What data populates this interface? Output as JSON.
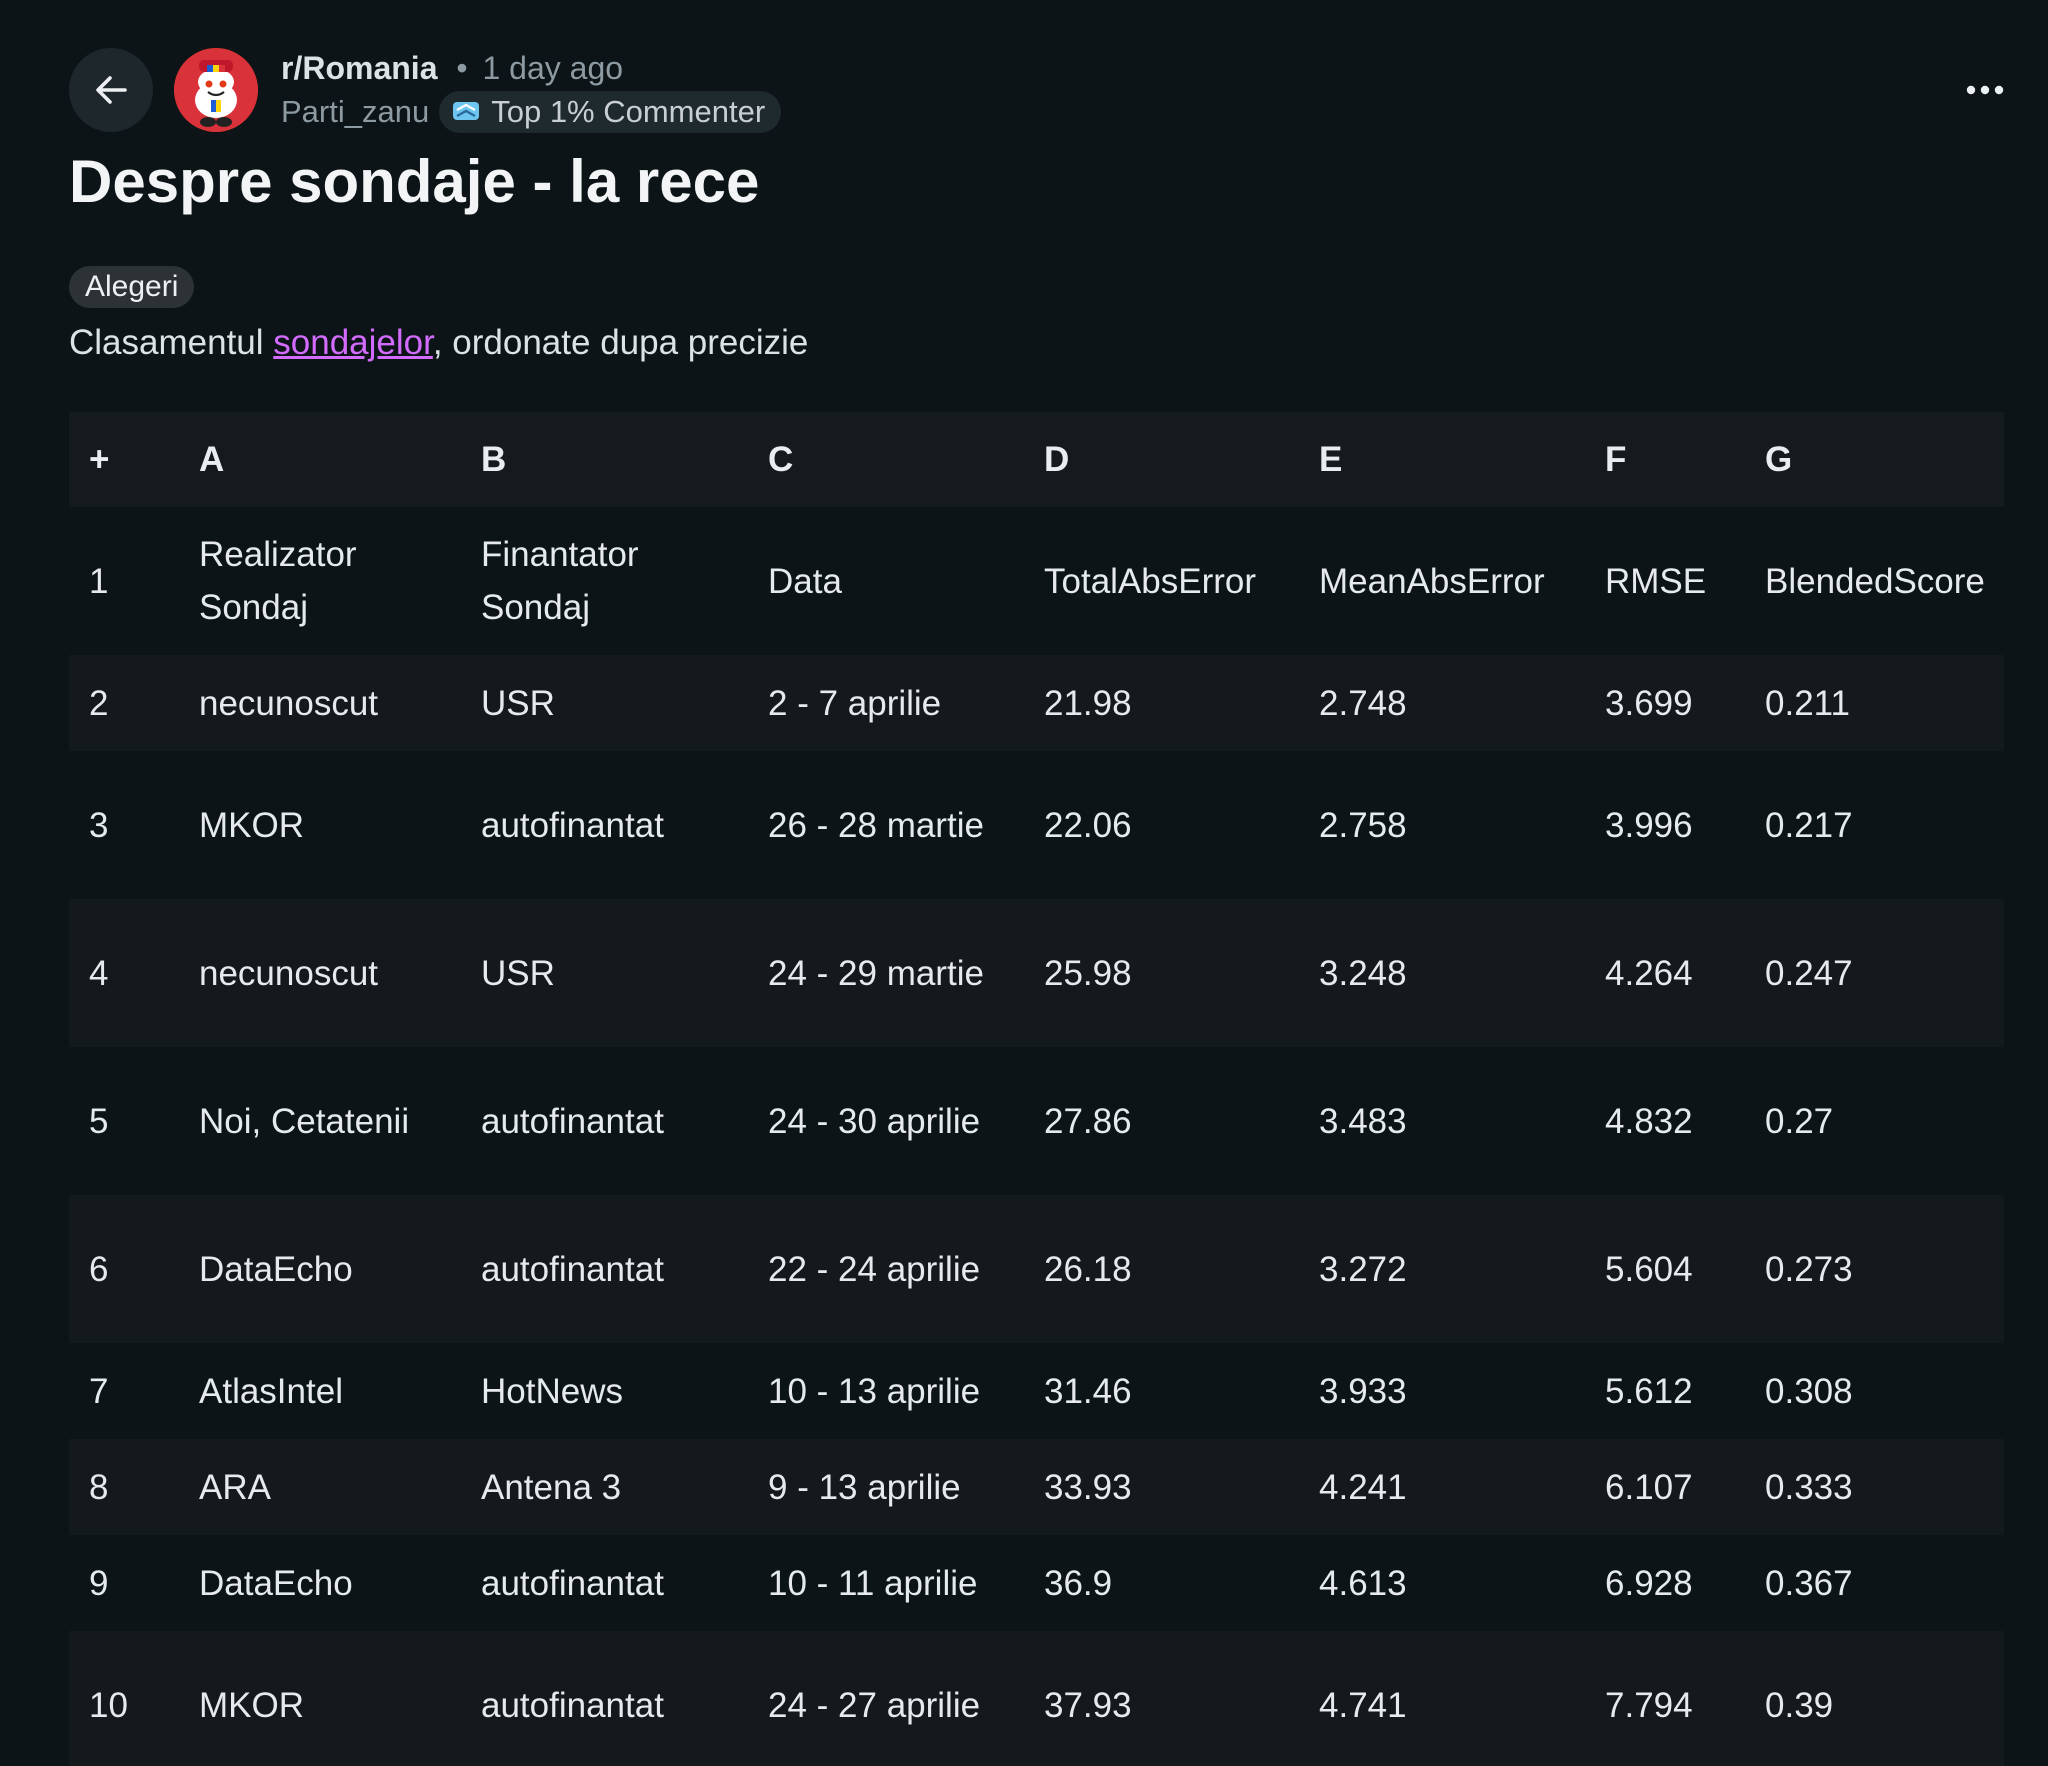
{
  "header": {
    "subreddit": "r/Romania",
    "separator": "•",
    "time_ago": "1 day ago",
    "username": "Parti_zanu",
    "user_badge": "Top 1% Commenter",
    "back_icon": "arrow-left-icon",
    "more_icon": "ellipsis-icon"
  },
  "post": {
    "title": "Despre sondaje - la rece",
    "flair": "Alegeri",
    "body_prefix": "Clasamentul ",
    "body_link": "sondajelor",
    "body_suffix": ", ordonate dupa precizie"
  },
  "colors": {
    "background": "#0c1417",
    "link": "#d36bff",
    "row_alt": "#141a1c",
    "header_row": "#151b1d"
  },
  "table": {
    "columns": [
      "+",
      "A",
      "B",
      "C",
      "D",
      "E",
      "F",
      "G"
    ],
    "rows": [
      [
        "1",
        "Realizator Sondaj",
        "Finantator Sondaj",
        "Data",
        "TotalAbsError",
        "MeanAbsError",
        "RMSE",
        "BlendedScore"
      ],
      [
        "2",
        "necunoscut",
        "USR",
        "2 - 7 aprilie",
        "21.98",
        "2.748",
        "3.699",
        "0.211"
      ],
      [
        "3",
        "MKOR",
        "autofinantat",
        "26 - 28 martie",
        "22.06",
        "2.758",
        "3.996",
        "0.217"
      ],
      [
        "4",
        "necunoscut",
        "USR",
        "24 - 29 martie",
        "25.98",
        "3.248",
        "4.264",
        "0.247"
      ],
      [
        "5",
        "Noi, Cetatenii",
        "autofinantat",
        "24 - 30 aprilie",
        "27.86",
        "3.483",
        "4.832",
        "0.27"
      ],
      [
        "6",
        "DataEcho",
        "autofinantat",
        "22 - 24 aprilie",
        "26.18",
        "3.272",
        "5.604",
        "0.273"
      ],
      [
        "7",
        "AtlasIntel",
        "HotNews",
        "10 - 13 aprilie",
        "31.46",
        "3.933",
        "5.612",
        "0.308"
      ],
      [
        "8",
        "ARA",
        "Antena 3",
        "9 - 13 aprilie",
        "33.93",
        "4.241",
        "6.107",
        "0.333"
      ],
      [
        "9",
        "DataEcho",
        "autofinantat",
        "10 - 11 aprilie",
        "36.9",
        "4.613",
        "6.928",
        "0.367"
      ],
      [
        "10",
        "MKOR",
        "autofinantat",
        "24 - 27 aprilie",
        "37.93",
        "4.741",
        "7.794",
        "0.39"
      ]
    ]
  }
}
